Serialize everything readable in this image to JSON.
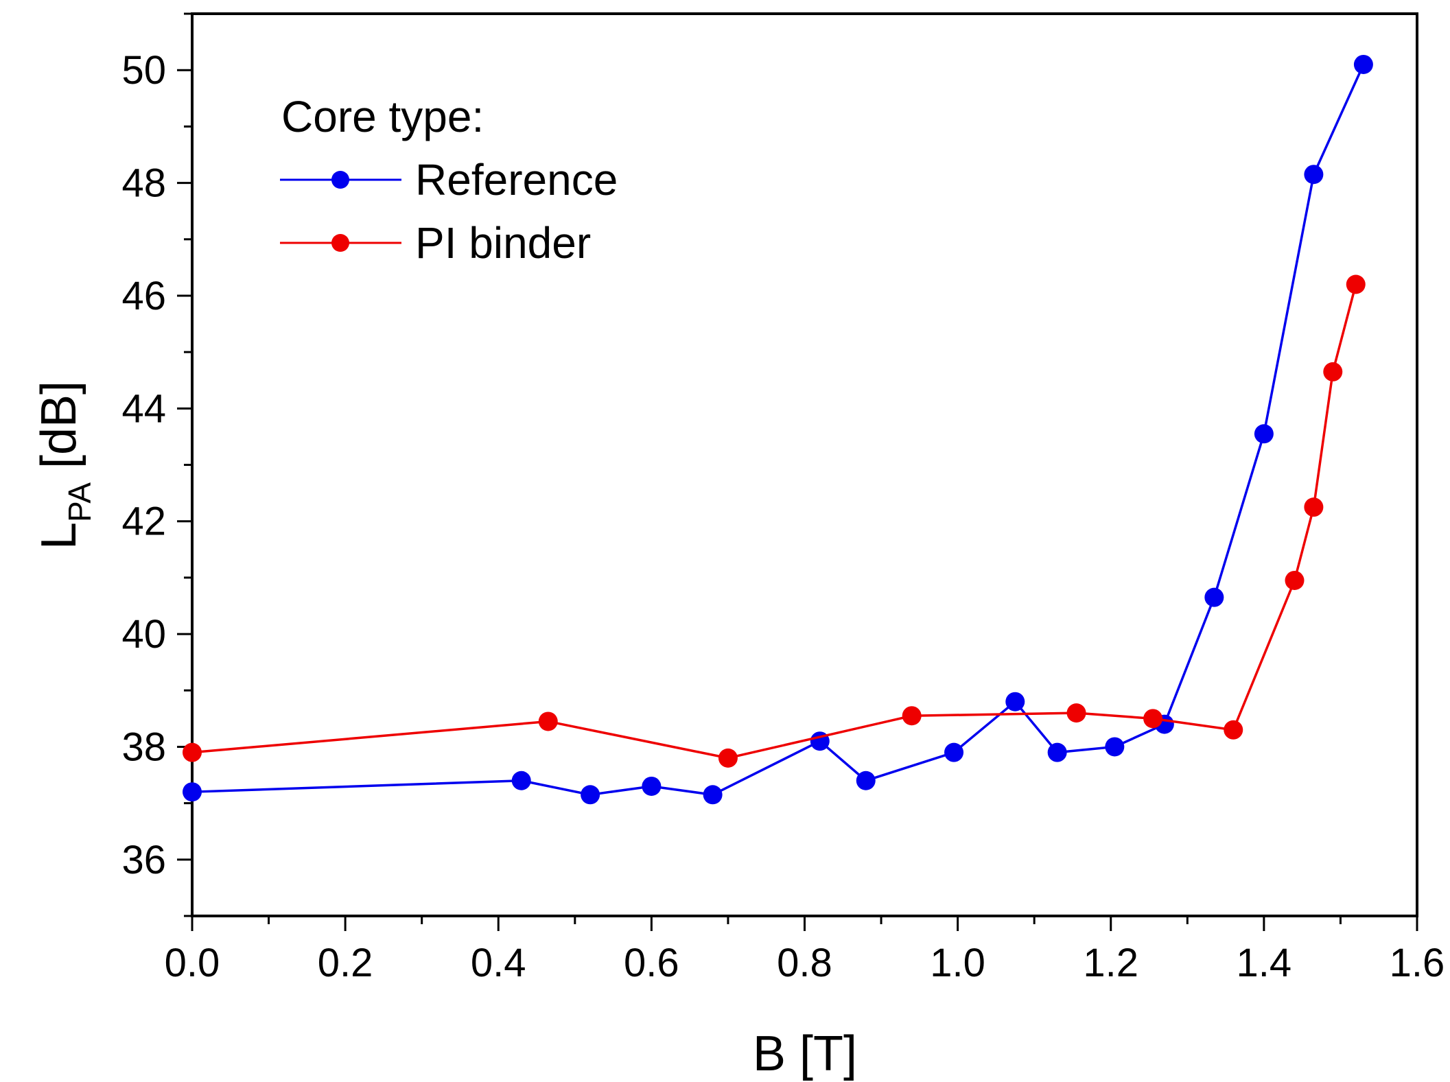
{
  "chart_data": {
    "type": "line",
    "xlabel": "B [T]",
    "ylabel": {
      "main": "L",
      "subscript": "PA",
      "unit": " [dB]"
    },
    "xlim": [
      0.0,
      1.6
    ],
    "ylim": [
      35,
      51
    ],
    "xticks": [
      "0.0",
      "0.2",
      "0.4",
      "0.6",
      "0.8",
      "1.0",
      "1.2",
      "1.4",
      "1.6"
    ],
    "yticks": [
      "36",
      "38",
      "40",
      "42",
      "44",
      "46",
      "48",
      "50"
    ],
    "legend": {
      "title": "Core type:",
      "placement": "top-left"
    },
    "series": [
      {
        "name": "Reference",
        "color": "#0000ee",
        "x": [
          0.0,
          0.43,
          0.52,
          0.6,
          0.68,
          0.82,
          0.88,
          0.995,
          1.075,
          1.13,
          1.205,
          1.27,
          1.335,
          1.4,
          1.465,
          1.53
        ],
        "y": [
          37.2,
          37.4,
          37.15,
          37.3,
          37.15,
          38.1,
          37.4,
          37.9,
          38.8,
          37.9,
          38.0,
          38.4,
          40.65,
          43.55,
          48.15,
          50.1
        ]
      },
      {
        "name": "PI binder",
        "color": "#ee0000",
        "x": [
          0.0,
          0.465,
          0.7,
          0.94,
          1.155,
          1.255,
          1.36,
          1.44,
          1.465,
          1.49,
          1.52
        ],
        "y": [
          37.9,
          38.45,
          37.8,
          38.55,
          38.6,
          38.5,
          38.3,
          40.95,
          42.25,
          44.65,
          46.2
        ]
      }
    ]
  }
}
